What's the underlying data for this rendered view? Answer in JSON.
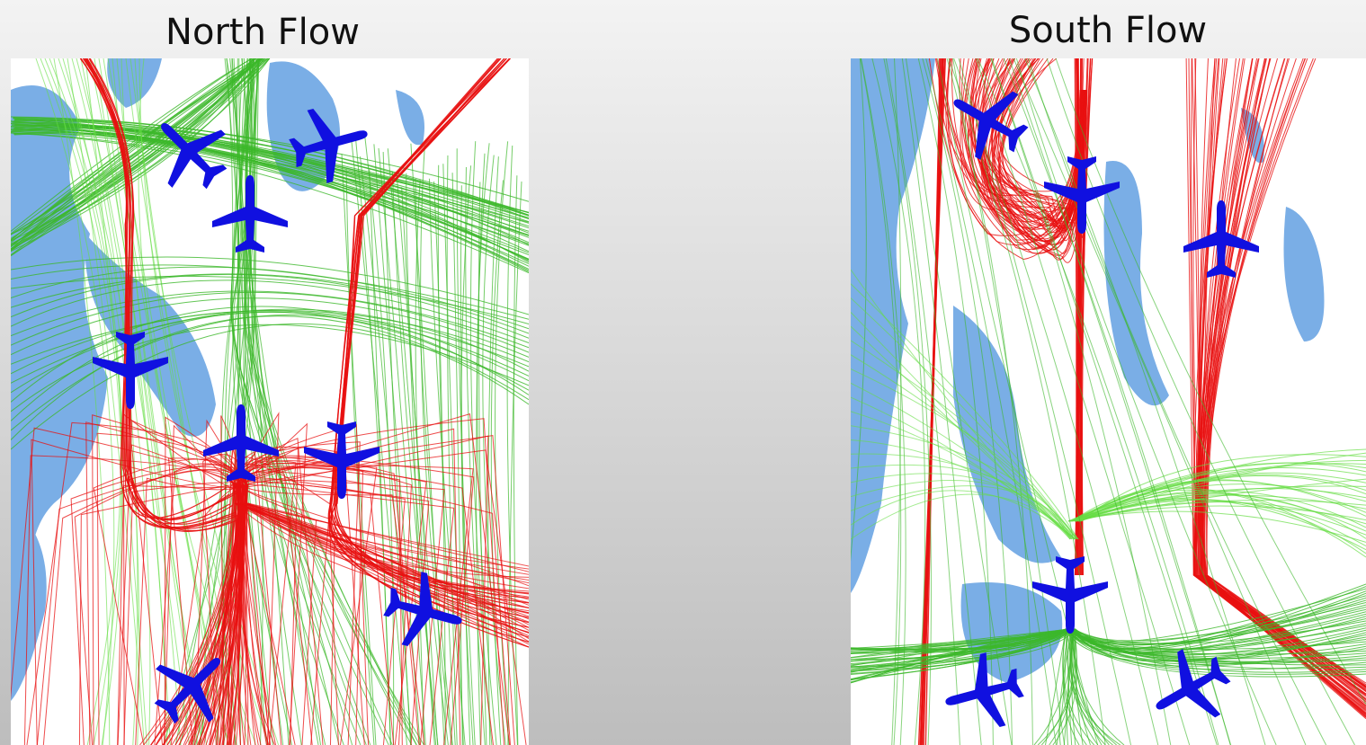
{
  "panels": [
    {
      "title": "North Flow"
    },
    {
      "title": "South Flow"
    }
  ]
}
